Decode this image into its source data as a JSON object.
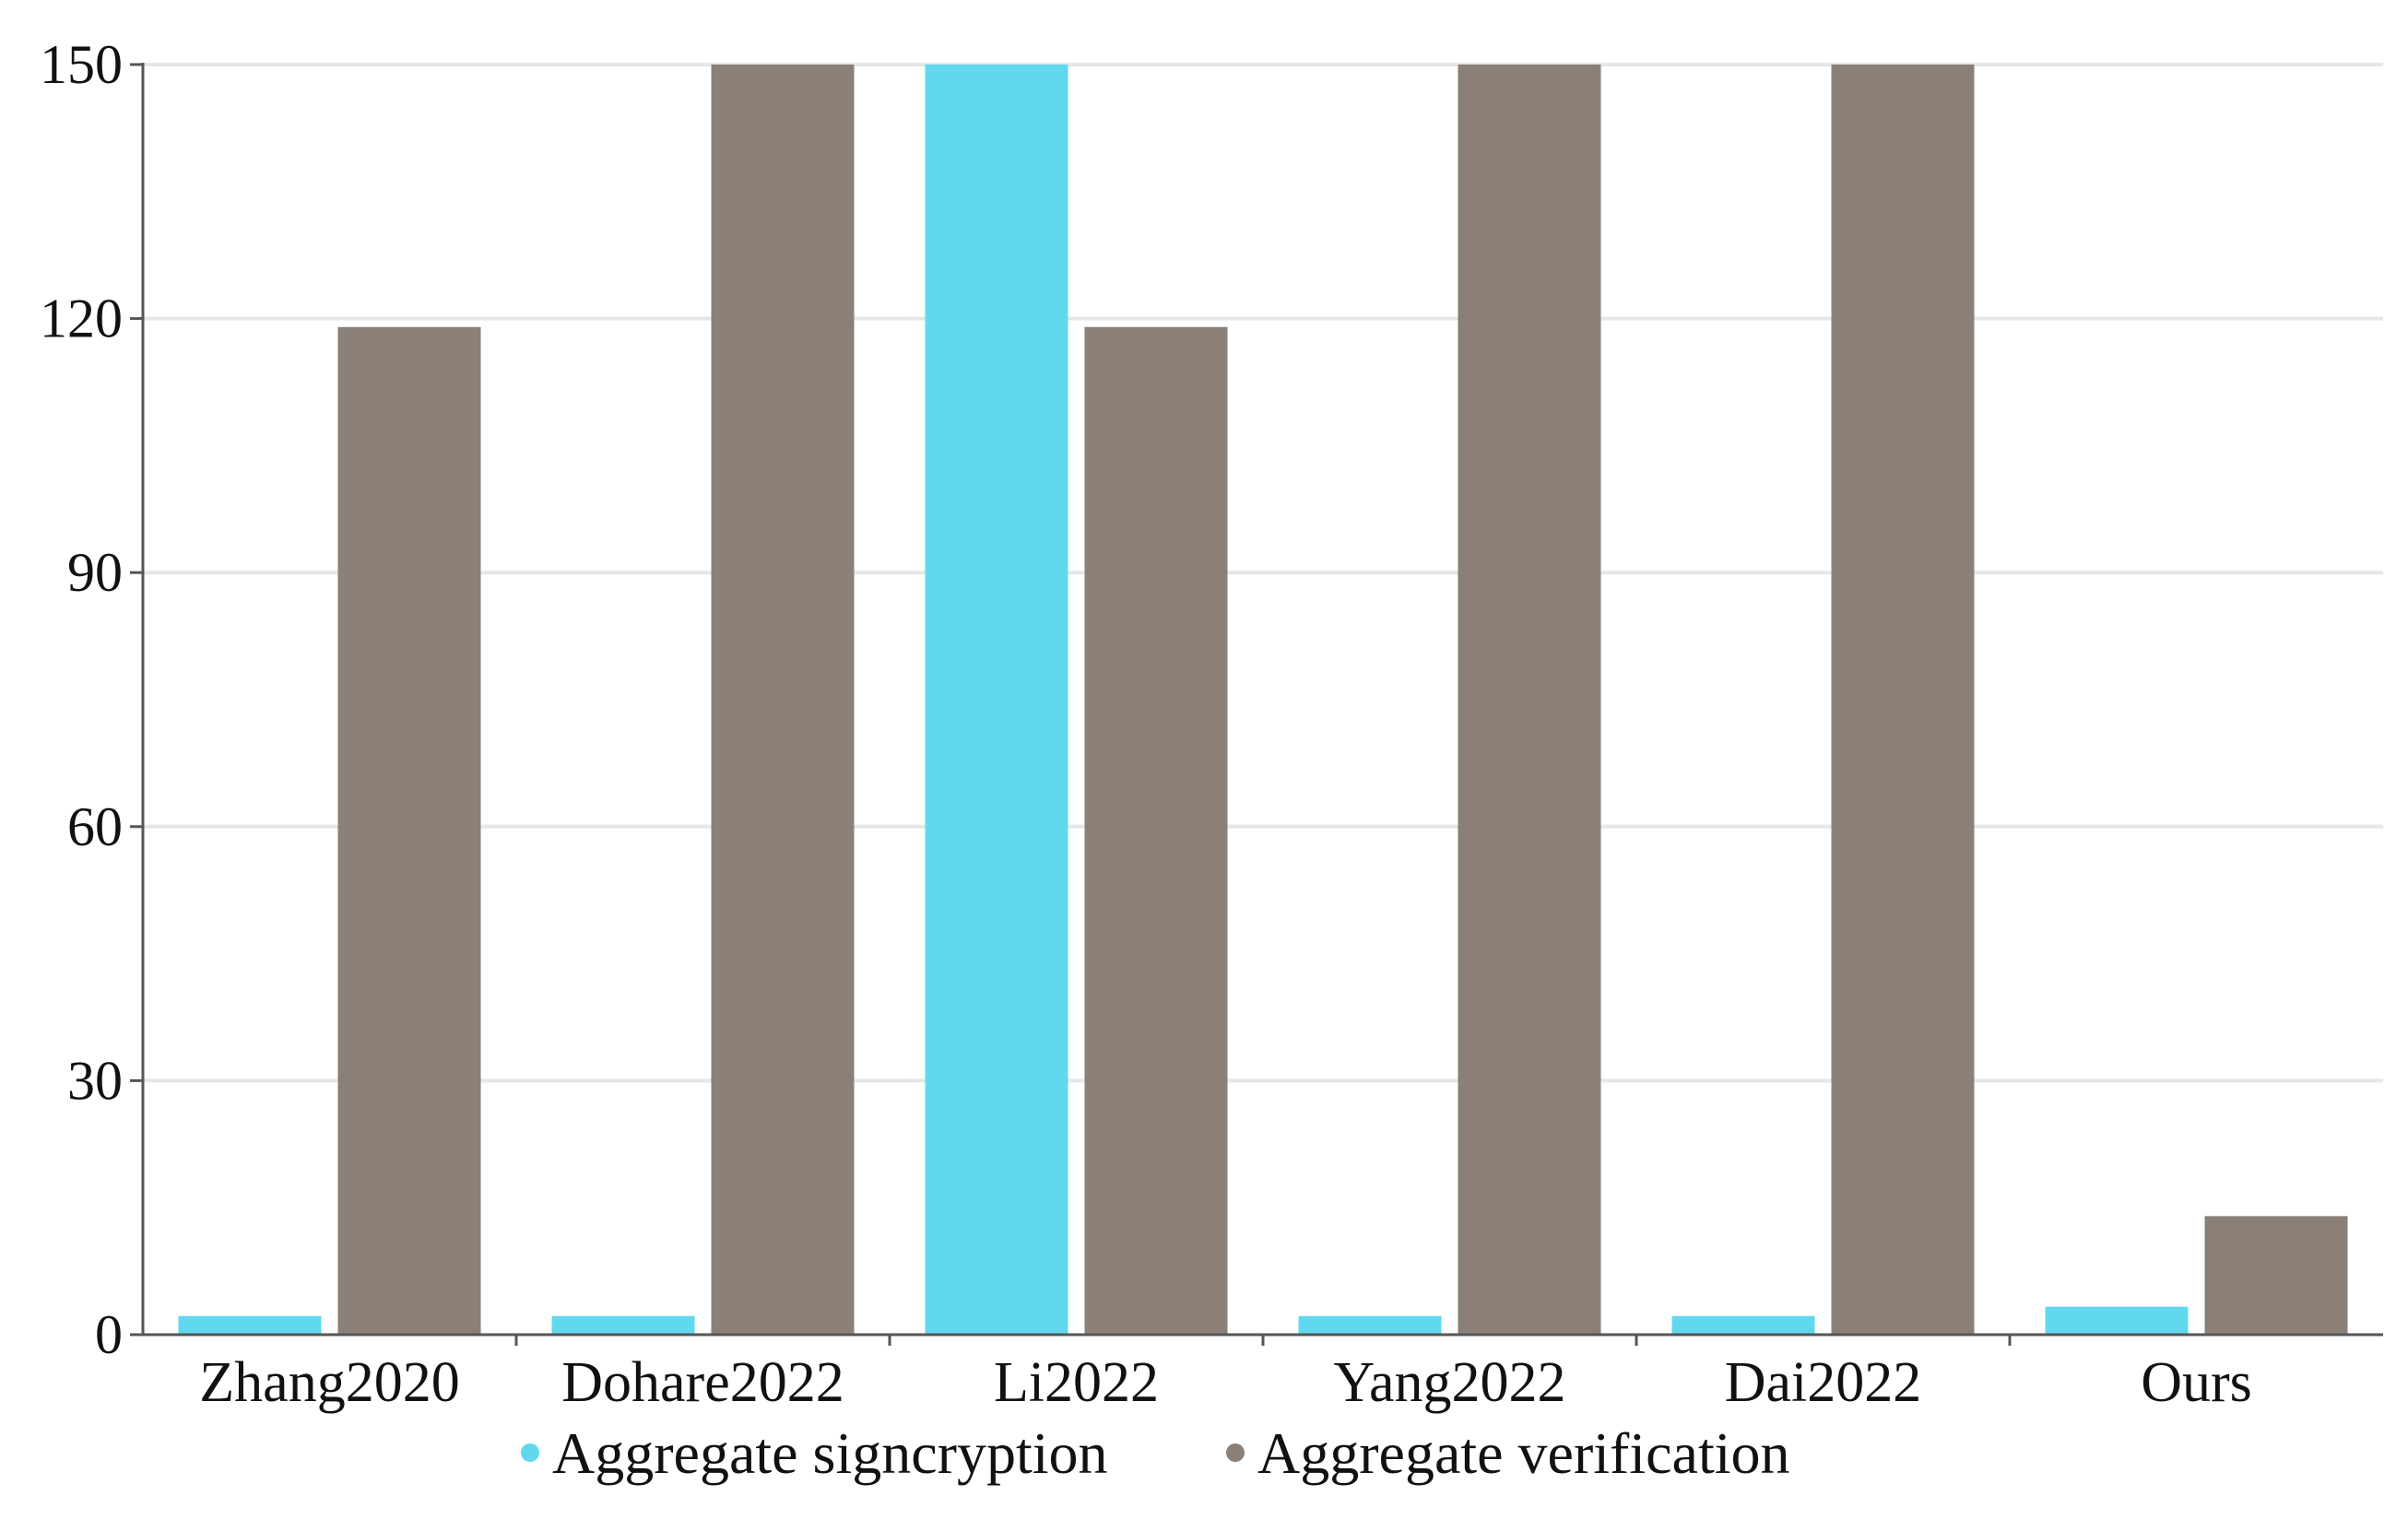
{
  "chart_data": {
    "type": "bar",
    "categories": [
      "Zhang2020",
      "Dohare2022",
      "Li2022",
      "Yang2022",
      "Dai2022",
      "Ours"
    ],
    "series": [
      {
        "name": "Aggregate signcryption",
        "color": "#62D8EE",
        "values": [
          2.2,
          2.2,
          150,
          2.2,
          2.2,
          3.3
        ]
      },
      {
        "name": "Aggregate verification",
        "color": "#8A8077",
        "values": [
          119,
          150,
          119,
          150,
          150,
          14
        ]
      }
    ],
    "yticks": [
      "0",
      "30",
      "60",
      "90",
      "120",
      "150"
    ],
    "ylim": [
      0,
      150
    ],
    "grid": true,
    "legend_position": "bottom-center",
    "title": "",
    "xlabel": "",
    "ylabel": ""
  }
}
